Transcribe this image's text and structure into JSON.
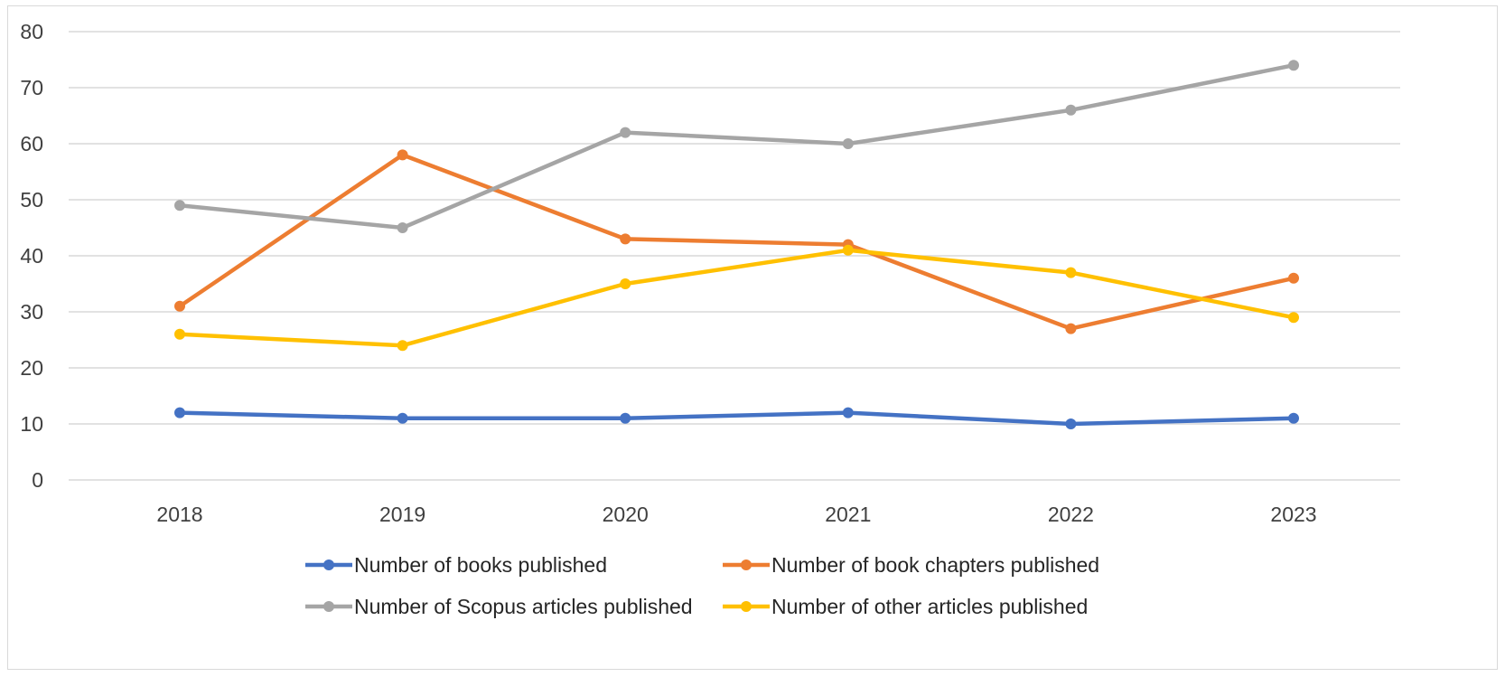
{
  "chart_data": {
    "type": "line",
    "title": "",
    "xlabel": "",
    "ylabel": "",
    "categories": [
      "2018",
      "2019",
      "2020",
      "2021",
      "2022",
      "2023"
    ],
    "ylim": [
      0,
      80
    ],
    "yticks": [
      "0",
      "10",
      "20",
      "30",
      "40",
      "50",
      "60",
      "70",
      "80"
    ],
    "grid": true,
    "legend_position": "bottom",
    "series": [
      {
        "name": "Number of books published",
        "color": "#4472C4",
        "values": [
          12,
          11,
          11,
          12,
          10,
          11
        ]
      },
      {
        "name": "Number of book chapters published",
        "color": "#ED7D31",
        "values": [
          31,
          58,
          43,
          42,
          27,
          36
        ]
      },
      {
        "name": "Number of Scopus articles published",
        "color": "#A5A5A5",
        "values": [
          49,
          45,
          62,
          60,
          66,
          74
        ]
      },
      {
        "name": "Number of other articles published",
        "color": "#FFC000",
        "values": [
          26,
          24,
          35,
          41,
          37,
          29
        ]
      }
    ]
  }
}
